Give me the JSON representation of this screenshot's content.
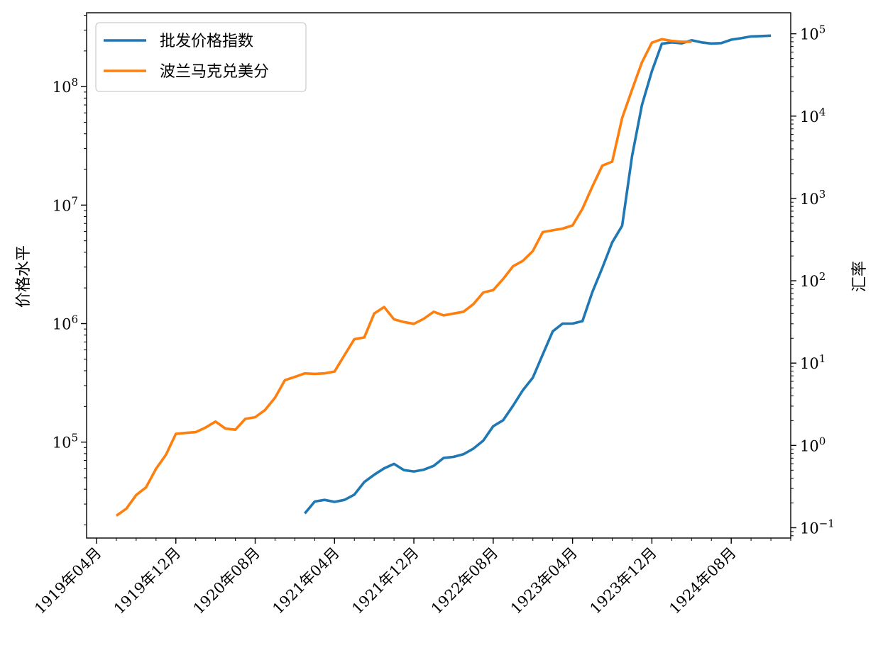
{
  "chart_data": {
    "type": "line",
    "title": "",
    "xlabel": "",
    "ylabel_left": "价格水平",
    "ylabel_right": "汇率",
    "x_ticks": [
      "1919年04月",
      "1919年12月",
      "1920年08月",
      "1921年04月",
      "1921年12月",
      "1922年08月",
      "1923年04月",
      "1923年12月",
      "1924年08月"
    ],
    "x_tick_dates": [
      "1919-04",
      "1919-12",
      "1920-08",
      "1921-04",
      "1921-12",
      "1922-08",
      "1923-04",
      "1923-12",
      "1924-08"
    ],
    "xlim": [
      "1919-03",
      "1925-02"
    ],
    "y_left": {
      "scale": "log",
      "ylim": [
        15500,
        420000000
      ],
      "tick_exponents": [
        5,
        6,
        7,
        8
      ]
    },
    "y_right": {
      "scale": "log",
      "ylim": [
        0.075,
        180000
      ],
      "tick_exponents": [
        -1,
        0,
        1,
        2,
        3,
        4,
        5
      ]
    },
    "legend": {
      "position": "upper-left",
      "entries": [
        "批发价格指数",
        "波兰马克兑美分"
      ]
    },
    "colors": {
      "series1": "#1f77b4",
      "series2": "#ff7f0e"
    },
    "series": [
      {
        "name": "批发价格指数",
        "axis": "left",
        "x": [
          "1921-01",
          "1921-02",
          "1921-03",
          "1921-04",
          "1921-05",
          "1921-06",
          "1921-07",
          "1921-08",
          "1921-09",
          "1921-10",
          "1921-11",
          "1921-12",
          "1922-01",
          "1922-02",
          "1922-03",
          "1922-04",
          "1922-05",
          "1922-06",
          "1922-07",
          "1922-08",
          "1922-09",
          "1922-10",
          "1922-11",
          "1922-12",
          "1923-01",
          "1923-02",
          "1923-03",
          "1923-04",
          "1923-05",
          "1923-06",
          "1923-07",
          "1923-08",
          "1923-09",
          "1923-10",
          "1923-11",
          "1923-12",
          "1924-01",
          "1924-02",
          "1924-03",
          "1924-04",
          "1924-05",
          "1924-06",
          "1924-07",
          "1924-08",
          "1924-09",
          "1924-10",
          "1924-11",
          "1924-12"
        ],
        "values": [
          25000,
          31500,
          32500,
          31300,
          32500,
          36000,
          46000,
          53000,
          60000,
          65500,
          58000,
          56500,
          58500,
          63000,
          73500,
          75000,
          79000,
          88000,
          103000,
          136000,
          153000,
          203000,
          275000,
          350000,
          550000,
          860000,
          1000000,
          1000000,
          1050000,
          1850000,
          2950000,
          4850000,
          6700000,
          26000000,
          70000000,
          135000000,
          230000000,
          236000000,
          232000000,
          246000000,
          236000000,
          231000000,
          233000000,
          249000000,
          256000000,
          265000000,
          267000000,
          269000000
        ]
      },
      {
        "name": "波兰马克兑美分",
        "axis": "right",
        "x": [
          "1919-06",
          "1919-07",
          "1919-08",
          "1919-09",
          "1919-10",
          "1919-11",
          "1919-12",
          "1920-01",
          "1920-02",
          "1920-03",
          "1920-04",
          "1920-05",
          "1920-06",
          "1920-07",
          "1920-08",
          "1920-09",
          "1920-10",
          "1920-11",
          "1920-12",
          "1921-01",
          "1921-02",
          "1921-03",
          "1921-04",
          "1921-05",
          "1921-06",
          "1921-07",
          "1921-08",
          "1921-09",
          "1921-10",
          "1921-11",
          "1921-12",
          "1922-01",
          "1922-02",
          "1922-03",
          "1922-04",
          "1922-05",
          "1922-06",
          "1922-07",
          "1922-08",
          "1922-09",
          "1922-10",
          "1922-11",
          "1922-12",
          "1923-01",
          "1923-02",
          "1923-03",
          "1923-04",
          "1923-05",
          "1923-06",
          "1923-07",
          "1923-08",
          "1923-09",
          "1923-10",
          "1923-11",
          "1923-12",
          "1924-01",
          "1924-02",
          "1924-03",
          "1924-04"
        ],
        "values": [
          0.14,
          0.17,
          0.25,
          0.31,
          0.52,
          0.77,
          1.38,
          1.42,
          1.45,
          1.65,
          1.95,
          1.6,
          1.55,
          2.1,
          2.2,
          2.7,
          3.8,
          6.2,
          6.8,
          7.5,
          7.4,
          7.5,
          7.9,
          12.5,
          19.5,
          20.5,
          40,
          48,
          34,
          31.5,
          30,
          34.5,
          42,
          38,
          40,
          42,
          52,
          72,
          77,
          105,
          150,
          175,
          230,
          390,
          410,
          430,
          470,
          750,
          1400,
          2500,
          2800,
          9500,
          21000,
          45000,
          78000,
          86000,
          82000,
          80000,
          80000
        ]
      }
    ]
  }
}
